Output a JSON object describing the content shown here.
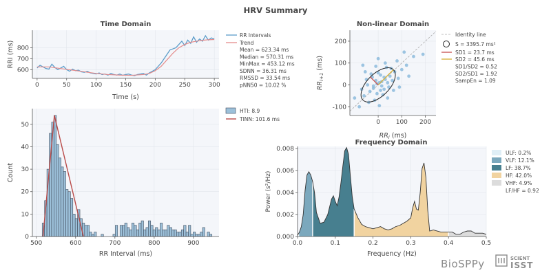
{
  "title": "HRV Summary",
  "colors": {
    "axis_bg": "#f4f6fa",
    "rri": "#5b9cc9",
    "trend": "#e48b8b",
    "hist_fill": "#9cc0d9",
    "hist_edge": "#3f4a5a",
    "tinn": "#b94a48",
    "scatter": "#7fb3d8",
    "sd1": "#c95b5b",
    "sd2": "#d9b43f",
    "ulf": "#dfeef6",
    "vlf": "#7ba8bd",
    "lf": "#477f8f",
    "hf": "#f1d3a0",
    "vhf": "#dcdcdc"
  },
  "branding": {
    "biosppy": "BioSPPy",
    "scientisst_top": "SCIENT",
    "scientisst_bottom": "ISST"
  },
  "chart_data": [
    {
      "type": "line",
      "title": "Time Domain",
      "xlabel": "Time (s)",
      "ylabel": "RRI (ms)",
      "xlim": [
        -8,
        308
      ],
      "ylim": [
        520,
        960
      ],
      "xticks": [
        0,
        50,
        100,
        150,
        200,
        250,
        300
      ],
      "yticks": [
        600,
        700,
        800
      ],
      "grid": true,
      "series": [
        {
          "name": "RR Intervals",
          "x": [
            0,
            5,
            10,
            15,
            20,
            25,
            30,
            35,
            40,
            45,
            50,
            55,
            60,
            65,
            70,
            75,
            80,
            85,
            90,
            95,
            100,
            105,
            110,
            115,
            120,
            125,
            130,
            135,
            140,
            145,
            150,
            155,
            160,
            165,
            170,
            175,
            180,
            185,
            190,
            195,
            200,
            205,
            210,
            215,
            220,
            225,
            230,
            235,
            240,
            245,
            250,
            255,
            260,
            265,
            270,
            275,
            280,
            285,
            290,
            295,
            300
          ],
          "y": [
            615,
            640,
            625,
            610,
            605,
            650,
            620,
            600,
            615,
            630,
            600,
            585,
            605,
            590,
            595,
            580,
            575,
            585,
            570,
            565,
            560,
            570,
            555,
            560,
            550,
            565,
            555,
            550,
            560,
            548,
            555,
            560,
            550,
            545,
            555,
            560,
            565,
            550,
            570,
            585,
            600,
            630,
            660,
            700,
            740,
            780,
            790,
            800,
            830,
            860,
            820,
            870,
            840,
            900,
            850,
            880,
            860,
            910,
            870,
            890,
            880
          ]
        },
        {
          "name": "Trend",
          "x": [
            0,
            20,
            40,
            60,
            80,
            100,
            120,
            140,
            160,
            180,
            190,
            200,
            210,
            220,
            230,
            240,
            250,
            260,
            270,
            280,
            290,
            300
          ],
          "y": [
            625,
            625,
            610,
            595,
            580,
            565,
            555,
            550,
            548,
            555,
            565,
            590,
            630,
            690,
            750,
            800,
            830,
            850,
            860,
            868,
            873,
            875
          ]
        }
      ],
      "stats": [
        "Mean = 623.34 ms",
        "Median = 570.31 ms",
        "MinMax = 453.12 ms",
        "SDNN = 36.31 ms",
        "RMSSD = 33.54 ms",
        "pNN50 = 10.02 %"
      ]
    },
    {
      "type": "scatter",
      "title": "Non-linear Domain",
      "xlabel": "RR",
      "xlabel_sub": "i",
      "xlabel_unit": " (ms)",
      "ylabel": "RR",
      "ylabel_sub": "i+1",
      "ylabel_unit": " (ms)",
      "xlim": [
        -120,
        245
      ],
      "ylim": [
        -140,
        250
      ],
      "xticks": [
        0,
        100,
        200
      ],
      "yticks": [
        -100,
        0,
        100,
        200
      ],
      "identity_label": "Identity line",
      "area_label": "S = 3395.7 ms²",
      "sd1_label": "SD1 = 23.7 ms",
      "sd2_label": "SD2 = 45.6 ms",
      "sd1": 23.7,
      "sd2": 45.6,
      "stats": [
        "SD1/SD2 = 0.52",
        "SD2/SD1 = 1.92",
        "SampEn = 1.09"
      ],
      "points": [
        [
          -20,
          -15
        ],
        [
          5,
          10
        ],
        [
          15,
          -5
        ],
        [
          -10,
          20
        ],
        [
          30,
          25
        ],
        [
          -35,
          -30
        ],
        [
          40,
          10
        ],
        [
          10,
          45
        ],
        [
          -5,
          -40
        ],
        [
          25,
          -20
        ],
        [
          50,
          40
        ],
        [
          -45,
          0
        ],
        [
          0,
          55
        ],
        [
          60,
          20
        ],
        [
          -25,
          35
        ],
        [
          20,
          -45
        ],
        [
          -60,
          -50
        ],
        [
          70,
          60
        ],
        [
          35,
          80
        ],
        [
          -15,
          -70
        ],
        [
          85,
          30
        ],
        [
          45,
          -10
        ],
        [
          -30,
          50
        ],
        [
          10,
          -25
        ],
        [
          -50,
          25
        ],
        [
          55,
          75
        ],
        [
          15,
          15
        ],
        [
          -5,
          5
        ],
        [
          25,
          35
        ],
        [
          -20,
          -5
        ],
        [
          65,
          -25
        ],
        [
          -70,
          -20
        ],
        [
          30,
          100
        ],
        [
          100,
          70
        ],
        [
          -40,
          -80
        ],
        [
          80,
          110
        ],
        [
          120,
          90
        ],
        [
          -10,
          85
        ],
        [
          150,
          130
        ],
        [
          -80,
          -100
        ],
        [
          110,
          150
        ],
        [
          5,
          -95
        ],
        [
          -55,
          60
        ],
        [
          40,
          -60
        ],
        [
          90,
          -10
        ],
        [
          190,
          140
        ],
        [
          -100,
          -60
        ],
        [
          0,
          120
        ],
        [
          -65,
          90
        ],
        [
          130,
          40
        ]
      ]
    },
    {
      "type": "bar",
      "title": "",
      "xlabel": "RR Interval (ms)",
      "ylabel": "Count",
      "xlim": [
        490,
        965
      ],
      "ylim": [
        0,
        57
      ],
      "xticks": [
        500,
        600,
        700,
        800,
        900
      ],
      "yticks": [
        0,
        10,
        20,
        30,
        40,
        50
      ],
      "grid": true,
      "bin_start": 515,
      "bin_width": 6,
      "values": [
        6,
        16,
        30,
        46,
        51,
        54,
        41,
        35,
        31,
        29,
        21,
        20,
        17,
        10,
        8,
        12,
        8,
        6,
        5,
        5,
        2,
        1,
        2,
        0,
        0,
        1,
        0,
        0,
        0,
        0,
        1,
        5,
        0,
        5,
        5,
        6,
        4,
        3,
        6,
        5,
        3,
        6,
        7,
        3,
        4,
        7,
        5,
        3,
        4,
        3,
        6,
        3,
        3,
        5,
        4,
        3,
        3,
        2,
        2,
        3,
        5,
        2,
        5,
        1,
        2,
        1,
        1,
        2,
        4,
        0,
        2,
        1
      ],
      "hti_label": "HTI: 8.9",
      "tinn_label": "TINN: 101.6 ms",
      "tinn_triangle": [
        [
          517,
          0
        ],
        [
          546,
          54
        ],
        [
          620,
          0
        ]
      ]
    },
    {
      "type": "area",
      "title": "Frequency Domain",
      "xlabel": "Frequency (Hz)",
      "ylabel": "Power (s²/Hz)",
      "xlim": [
        0,
        0.5
      ],
      "ylim": [
        0,
        0.0082
      ],
      "xticks": [
        0.0,
        0.1,
        0.2,
        0.3,
        0.4,
        0.5
      ],
      "xticklabels": [
        "0.0",
        "0.1",
        "0.2",
        "0.3",
        "0.4",
        "0.5"
      ],
      "yticks": [
        0,
        0.002,
        0.004,
        0.006,
        0.008
      ],
      "yticklabels": [
        "0.000",
        "0.002",
        "0.004",
        "0.006",
        "0.008"
      ],
      "x": [
        0.0,
        0.005,
        0.01,
        0.015,
        0.02,
        0.025,
        0.03,
        0.035,
        0.04,
        0.045,
        0.05,
        0.06,
        0.07,
        0.08,
        0.09,
        0.095,
        0.1,
        0.105,
        0.11,
        0.115,
        0.12,
        0.125,
        0.13,
        0.135,
        0.14,
        0.145,
        0.15,
        0.16,
        0.17,
        0.18,
        0.19,
        0.2,
        0.21,
        0.22,
        0.23,
        0.24,
        0.25,
        0.26,
        0.27,
        0.28,
        0.29,
        0.3,
        0.305,
        0.31,
        0.315,
        0.32,
        0.325,
        0.33,
        0.335,
        0.34,
        0.345,
        0.35,
        0.36,
        0.37,
        0.38,
        0.39,
        0.4,
        0.41,
        0.42,
        0.43,
        0.44,
        0.45,
        0.46,
        0.47,
        0.48,
        0.49,
        0.5
      ],
      "y": [
        0.0001,
        0.0004,
        0.0009,
        0.002,
        0.0042,
        0.0056,
        0.0059,
        0.0056,
        0.005,
        0.004,
        0.0022,
        0.0012,
        0.0013,
        0.002,
        0.0034,
        0.0037,
        0.0032,
        0.0028,
        0.0036,
        0.0049,
        0.0064,
        0.0078,
        0.0081,
        0.0075,
        0.0055,
        0.0036,
        0.0025,
        0.0017,
        0.0011,
        0.0009,
        0.0008,
        0.0007,
        0.0008,
        0.0009,
        0.0007,
        0.0006,
        0.0007,
        0.0009,
        0.001,
        0.0012,
        0.0014,
        0.0017,
        0.0026,
        0.0032,
        0.0025,
        0.0024,
        0.004,
        0.0062,
        0.0067,
        0.0054,
        0.0024,
        0.0005,
        0.0006,
        0.0005,
        0.0004,
        0.0004,
        0.0004,
        0.0004,
        0.0002,
        0.0002,
        0.0004,
        0.0005,
        0.0005,
        0.0003,
        0.0003,
        0.0003,
        0.0002
      ],
      "bands": [
        {
          "name": "ULF",
          "label": "ULF: 0.2%",
          "from": 0.0,
          "to": 0.003,
          "color": "#dfeef6"
        },
        {
          "name": "VLF",
          "label": "VLF: 12.1%",
          "from": 0.003,
          "to": 0.04,
          "color": "#7ba8bd"
        },
        {
          "name": "LF",
          "label": "LF: 38.7%",
          "from": 0.04,
          "to": 0.15,
          "color": "#477f8f"
        },
        {
          "name": "HF",
          "label": "HF: 42.0%",
          "from": 0.15,
          "to": 0.4,
          "color": "#f1d3a0"
        },
        {
          "name": "VHF",
          "label": "VHF: 4.9%",
          "from": 0.4,
          "to": 0.5,
          "color": "#dcdcdc"
        }
      ],
      "ratio_label": "LF/HF = 0.92"
    }
  ]
}
